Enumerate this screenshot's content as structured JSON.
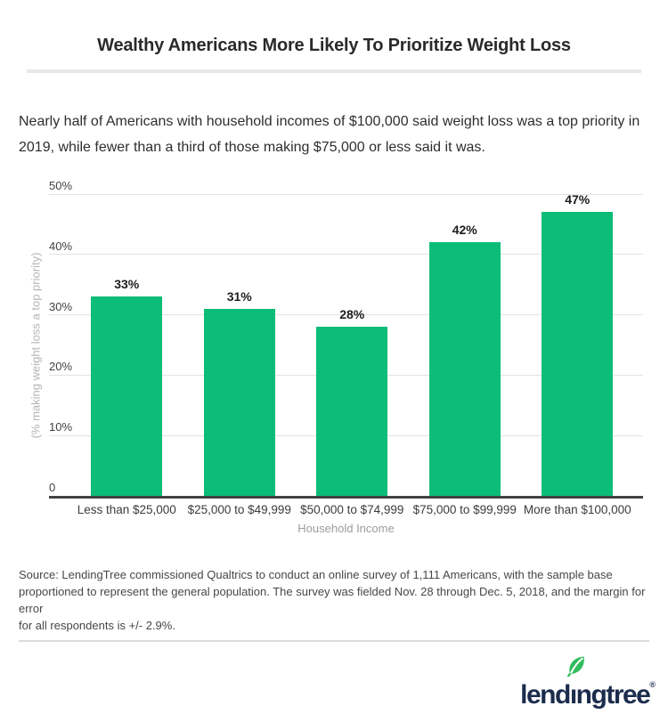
{
  "header": {
    "title": "Wealthy Americans More Likely To Prioritize Weight Loss"
  },
  "subtitle": {
    "lines": [
      "Nearly half of Americans with household incomes of $100,000 said weight loss was a top priority in",
      "2019, while fewer than a third of those making $75,000 or less said it was."
    ]
  },
  "chart_data": {
    "type": "bar",
    "title": "Wealthy Americans More Likely To Prioritize Weight Loss",
    "categories": [
      "Less than $25,000",
      "$25,000 to $49,999",
      "$50,000 to $74,999",
      "$75,000 to $99,999",
      "More than $100,000"
    ],
    "values": [
      33,
      31,
      28,
      42,
      47
    ],
    "value_labels": [
      "33%",
      "31%",
      "28%",
      "42%",
      "47%"
    ],
    "xlabel": "Household Income",
    "ylabel": "(% making weight loss a top priority)",
    "ylim": [
      0,
      50
    ],
    "yticks": [
      50,
      40,
      30,
      20,
      10,
      0
    ],
    "ytick_labels": [
      "50%",
      "40%",
      "30%",
      "20%",
      "10%",
      "0"
    ],
    "grid": true,
    "legend": "none",
    "bar_color": "#0bbd77"
  },
  "source": {
    "lines": [
      "Source: LendingTree commissioned Qualtrics to conduct an online survey of 1,111 Americans, with the sample base",
      "proportioned to represent the general population. The survey was fielded Nov. 28 through Dec. 5, 2018, and the margin for error",
      "for all respondents is +/- 2.9%."
    ]
  },
  "footer": {
    "logo": {
      "prefix": "lend",
      "dotless_i": "ı",
      "suffix": "ngtree",
      "registered": "®",
      "full_name": "lendingtree"
    }
  },
  "colors": {
    "bar_green": "#0bbd77",
    "leaf_green": "#2fbd5b",
    "logo_navy": "#1b2c4c",
    "gridline": "#e3e3e3",
    "axis": "#424242",
    "divider": "#e8e8e8",
    "muted_text": "#9c9c9c"
  }
}
